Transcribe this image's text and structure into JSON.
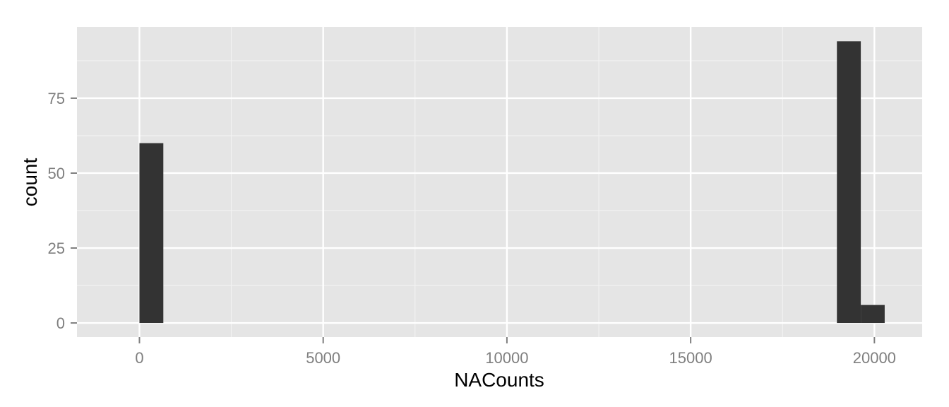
{
  "chart_data": {
    "type": "bar",
    "subtype": "histogram",
    "xlabel": "NACounts",
    "ylabel": "count",
    "xlim": [
      -1700,
      21300
    ],
    "ylim": [
      -4.7,
      98.8
    ],
    "x_ticks": [
      0,
      5000,
      10000,
      15000,
      20000
    ],
    "x_tick_labels": [
      "0",
      "5000",
      "10000",
      "15000",
      "20000"
    ],
    "y_ticks": [
      0,
      25,
      50,
      75
    ],
    "y_tick_labels": [
      "0",
      "25",
      "50",
      "75"
    ],
    "grid": true,
    "bins": [
      {
        "x0": 0,
        "x1": 650,
        "count": 60
      },
      {
        "x0": 18980,
        "x1": 19630,
        "count": 94
      },
      {
        "x0": 19630,
        "x1": 20280,
        "count": 6
      }
    ],
    "colors": {
      "panel": "#e5e5e5",
      "grid_major": "#ffffff",
      "grid_minor": "#f2f2f2",
      "bar": "#333333",
      "tick": "#7f7f7f"
    }
  }
}
